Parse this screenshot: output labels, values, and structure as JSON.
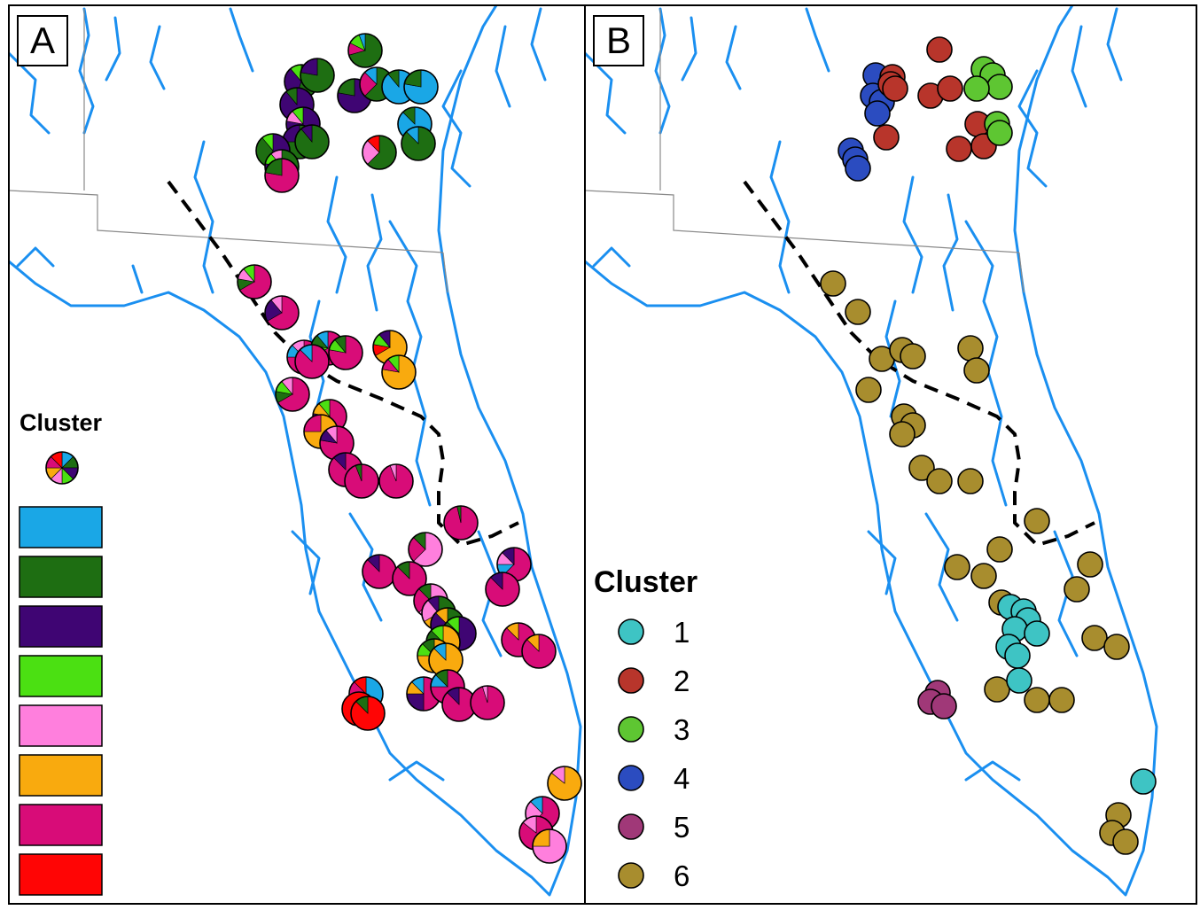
{
  "panels": [
    {
      "label": "A"
    },
    {
      "label": "B"
    }
  ],
  "legend_a": {
    "title": "Cluster",
    "swatch_colors": [
      "#1aa7e6",
      "#1e6e12",
      "#3f0573",
      "#4be012",
      "#ff7fdd",
      "#f9aa0e",
      "#d80c78",
      "#ff0505"
    ]
  },
  "legend_b": {
    "title": "Cluster",
    "items": [
      {
        "label": "1",
        "color": "#3ec4c4"
      },
      {
        "label": "2",
        "color": "#b8352b"
      },
      {
        "label": "3",
        "color": "#5ec632"
      },
      {
        "label": "4",
        "color": "#2b4cc0"
      },
      {
        "label": "5",
        "color": "#a03878"
      },
      {
        "label": "6",
        "color": "#a88d2e"
      }
    ]
  },
  "colors": {
    "river": "#1a8ff0",
    "boundary": "#000000",
    "state_line": "#8a8a8a"
  }
}
